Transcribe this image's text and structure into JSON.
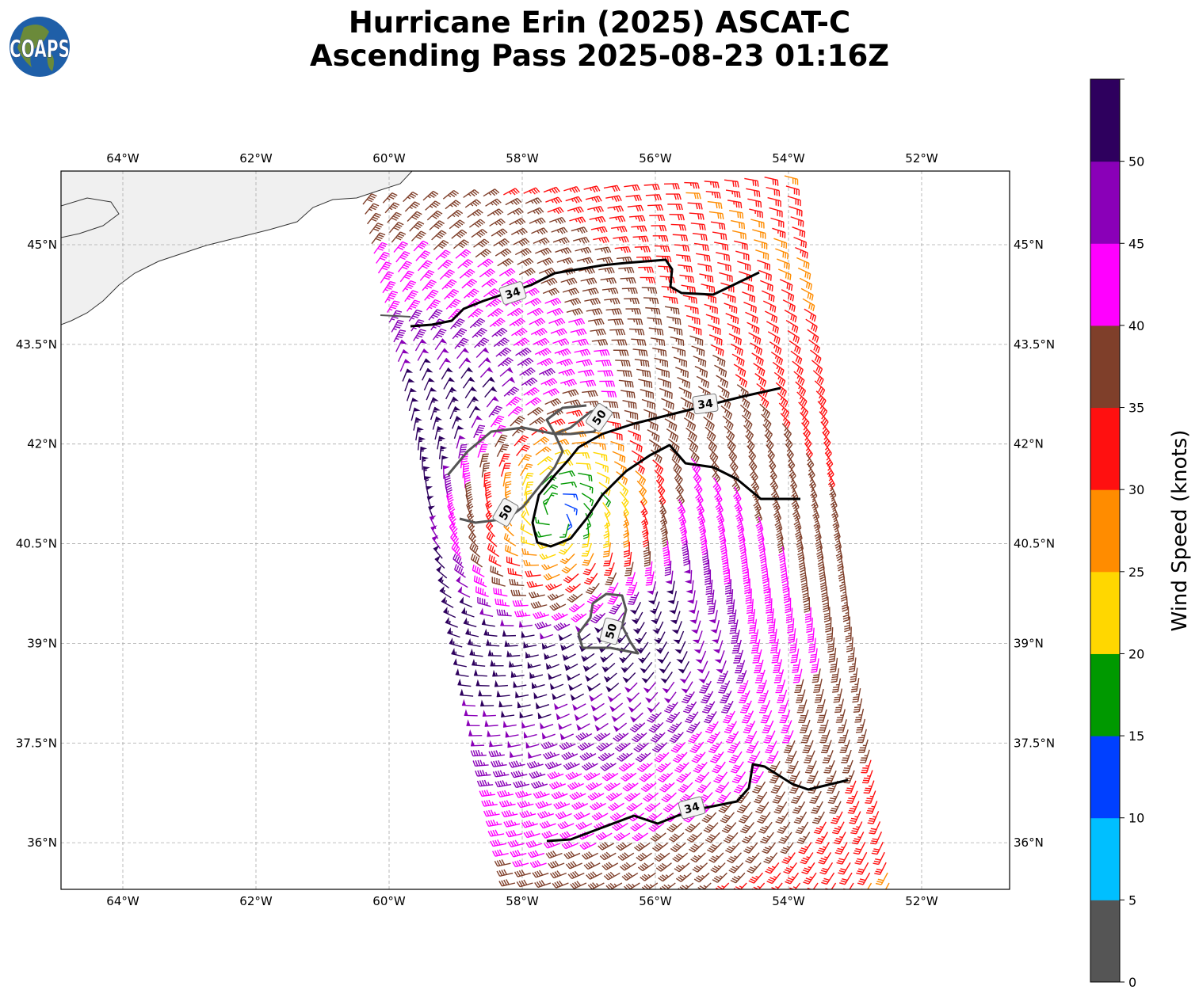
{
  "title_line1": "Hurricane Erin (2025) ASCAT-C",
  "title_line2": "Ascending Pass 2025-08-23 01:16Z",
  "logo_text": "COAPS",
  "lon_labels": [
    "64°W",
    "62°W",
    "60°W",
    "58°W",
    "56°W",
    "54°W",
    "52°W"
  ],
  "lon_values": [
    -64,
    -62,
    -60,
    -58,
    -56,
    -54,
    -52
  ],
  "lat_labels": [
    "45°N",
    "43.5°N",
    "42°N",
    "40.5°N",
    "39°N",
    "37.5°N",
    "36°N"
  ],
  "lat_values": [
    45,
    43.5,
    42,
    40.5,
    39,
    37.5,
    36
  ],
  "contour_labels": {
    "north_34": "34",
    "mid_34": "34",
    "south_34": "34",
    "west_50": "50",
    "northwest_50": "50",
    "south_50": "50"
  },
  "colorbar": {
    "label": "Wind Speed (knots)",
    "ticks": [
      "0",
      "5",
      "10",
      "15",
      "20",
      "25",
      "30",
      "35",
      "40",
      "45",
      "50"
    ],
    "colors": [
      "#555555",
      "#00bfff",
      "#0040ff",
      "#009900",
      "#ffd700",
      "#ff8c00",
      "#ff1010",
      "#7f3f2a",
      "#ff00ff",
      "#8a00b8",
      "#2e005e"
    ]
  }
}
